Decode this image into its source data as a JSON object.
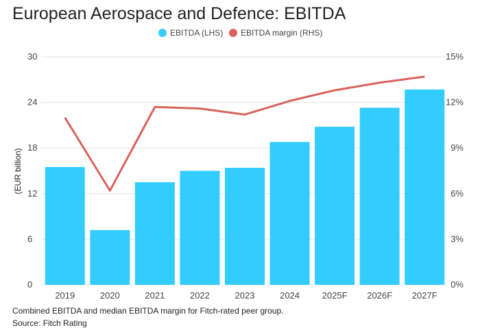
{
  "footnote": "Combined EBITDA and median EBITDA margin for Fitch-rated peer group.",
  "source": "Source: Fitch Rating",
  "colors": {
    "bar": "#33ccff",
    "line": "#d9625c",
    "grid": "#e6e6e6"
  },
  "chart_data": {
    "type": "bar",
    "title": "European Aerospace and Defence: EBITDA",
    "categories": [
      "2019",
      "2020",
      "2021",
      "2022",
      "2023",
      "2024",
      "2025F",
      "2026F",
      "2027F"
    ],
    "series": [
      {
        "name": "EBITDA (LHS)",
        "type": "bar",
        "axis": "left",
        "values": [
          15.5,
          7.2,
          13.5,
          15.0,
          15.4,
          18.8,
          20.8,
          23.3,
          25.7
        ]
      },
      {
        "name": "EBITDA margin (RHS)",
        "type": "line",
        "axis": "right",
        "values": [
          11.0,
          6.2,
          11.7,
          11.6,
          11.2,
          12.1,
          12.8,
          13.3,
          13.7
        ]
      }
    ],
    "xlabel": "",
    "ylabel": "(EUR billion)",
    "ylim": [
      0,
      30
    ],
    "yticks": [
      "0",
      "6",
      "12",
      "18",
      "24",
      "30"
    ],
    "y2lim": [
      0,
      15
    ],
    "y2ticks": [
      "0%",
      "3%",
      "6%",
      "9%",
      "12%",
      "15%"
    ],
    "grid": true,
    "legend": "top-center"
  }
}
